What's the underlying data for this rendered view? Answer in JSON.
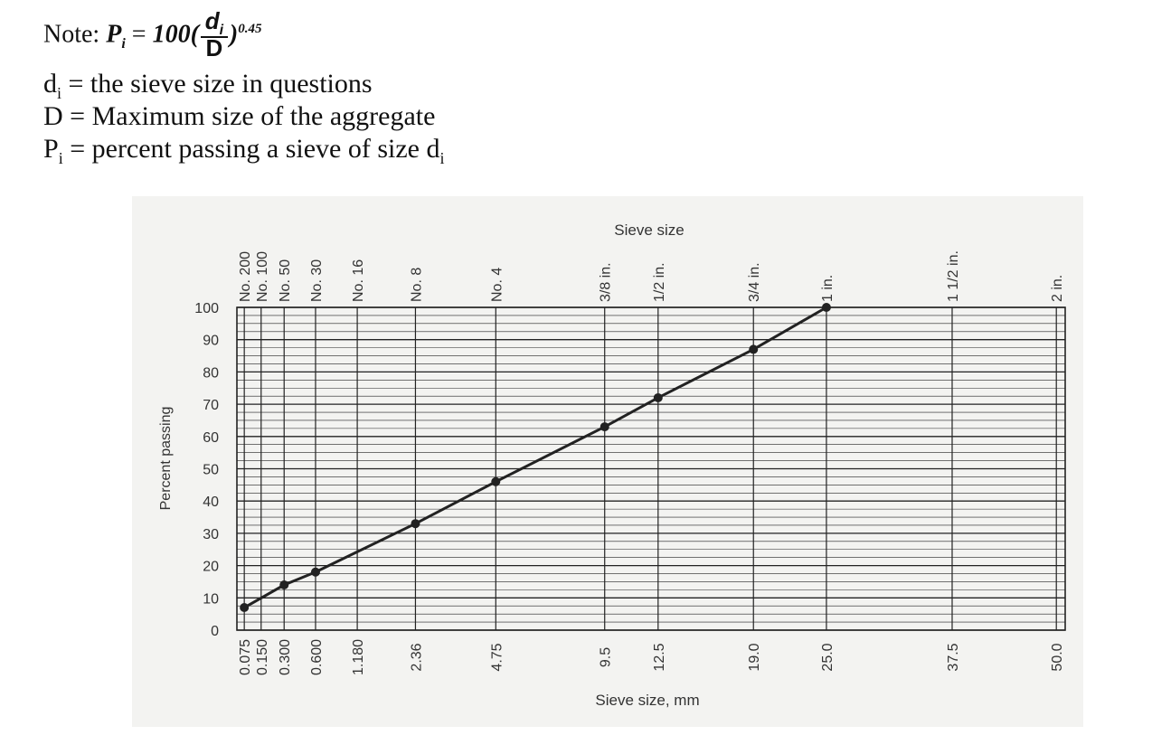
{
  "note": {
    "label": "Note:",
    "formula_lhs": "P",
    "formula_lhs_sub": "i",
    "formula_eq": "=",
    "formula_coef": "100(",
    "formula_num": "d",
    "formula_num_sub": "i",
    "formula_den": "D",
    "formula_close": ")",
    "formula_exp": "0.45",
    "definitions": [
      {
        "sym": "d",
        "sub": "i",
        "text": "= the sieve size in questions"
      },
      {
        "sym": "D",
        "sub": "",
        "text": "= Maximum size of the aggregate"
      },
      {
        "sym": "P",
        "sub": "i",
        "text": "= percent passing a sieve of size d",
        "tail_sub": "i"
      }
    ]
  },
  "chart_data": {
    "type": "line",
    "top_axis_title": "Sieve size",
    "xlabel": "Sieve size, mm",
    "ylabel": "Percent passing",
    "ylim": [
      0,
      100
    ],
    "yticks": [
      0,
      10,
      20,
      30,
      40,
      50,
      60,
      70,
      80,
      90,
      100
    ],
    "sieves": [
      {
        "mm": "0.075",
        "name": "No. 200"
      },
      {
        "mm": "0.150",
        "name": "No. 100"
      },
      {
        "mm": "0.300",
        "name": "No. 50"
      },
      {
        "mm": "0.600",
        "name": "No. 30"
      },
      {
        "mm": "1.180",
        "name": "No. 16"
      },
      {
        "mm": "2.36",
        "name": "No. 8"
      },
      {
        "mm": "4.75",
        "name": "No. 4"
      },
      {
        "mm": "9.5",
        "name": "3/8 in."
      },
      {
        "mm": "12.5",
        "name": "1/2 in."
      },
      {
        "mm": "19.0",
        "name": "3/4 in."
      },
      {
        "mm": "25.0",
        "name": "1 in."
      },
      {
        "mm": "37.5",
        "name": "1 1/2 in."
      },
      {
        "mm": "50.0",
        "name": "2 in."
      }
    ],
    "series": [
      {
        "x": [
          0.075,
          0.3,
          0.6,
          2.36,
          4.75,
          9.5,
          12.5,
          19.0,
          25.0
        ],
        "y": [
          7,
          14,
          18,
          33,
          46,
          63,
          72,
          87,
          100
        ]
      }
    ],
    "grid": true,
    "x_scale": "power 0.45"
  }
}
